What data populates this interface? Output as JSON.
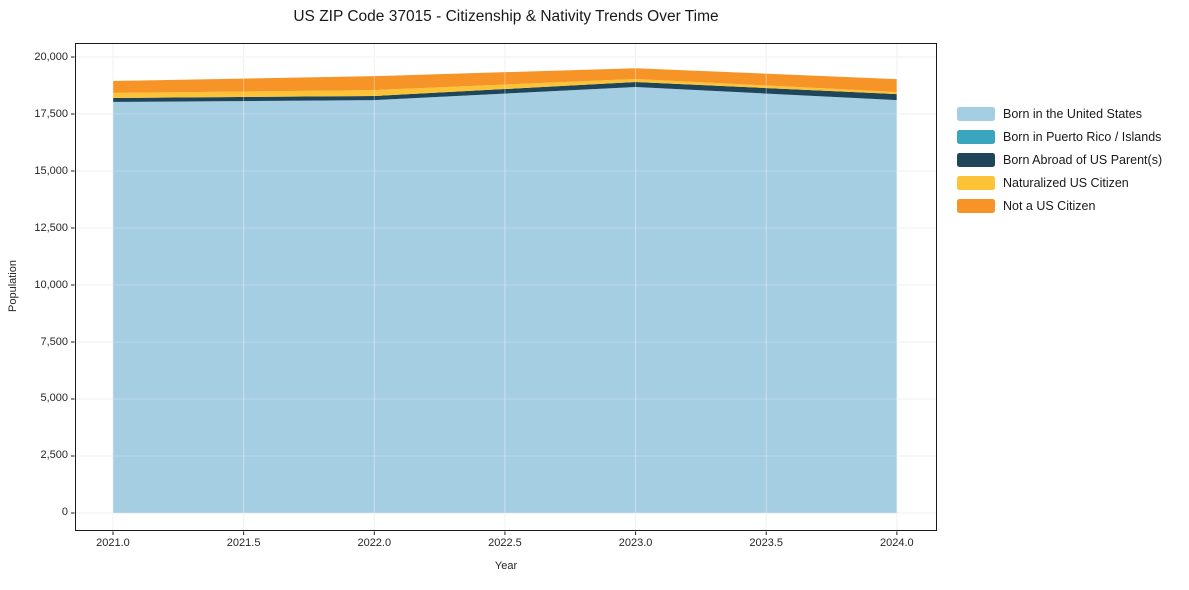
{
  "figure": {
    "title": "US ZIP Code 37015 - Citizenship & Nativity Trends Over Time",
    "xlabel": "Year",
    "ylabel": "Population"
  },
  "chart_data": {
    "type": "area",
    "stacked": true,
    "x": [
      2021,
      2022,
      2023,
      2024
    ],
    "series": [
      {
        "name": "Born in the United States",
        "color": "#a6cee3",
        "values": [
          18030,
          18110,
          18685,
          18110
        ]
      },
      {
        "name": "Born in Puerto Rico / Islands",
        "color": "#3aa5bf",
        "values": [
          0,
          0,
          0,
          0
        ]
      },
      {
        "name": "Born Abroad of US Parent(s)",
        "color": "#1f455a",
        "values": [
          175,
          180,
          220,
          265
        ]
      },
      {
        "name": "Naturalized US Citizen",
        "color": "#fcc337",
        "values": [
          220,
          260,
          130,
          90
        ]
      },
      {
        "name": "Not a US Citizen",
        "color": "#f79428",
        "values": [
          525,
          610,
          475,
          565
        ]
      }
    ],
    "totals_by_year": [
      18950,
      19160,
      19510,
      19030
    ],
    "xlim": [
      2020.8546,
      2024.1536
    ],
    "ylim": [
      -790,
      20615
    ],
    "yticks": [
      0,
      2500,
      5000,
      7500,
      10000,
      12500,
      15000,
      17500,
      20000
    ],
    "xticks": [
      2021.0,
      2021.5,
      2022.0,
      2022.5,
      2023.0,
      2023.5,
      2024.0
    ],
    "grid": true,
    "grid_color": "#ebebeb",
    "spine_color": "#1a1a1a",
    "legend_position": "right"
  }
}
